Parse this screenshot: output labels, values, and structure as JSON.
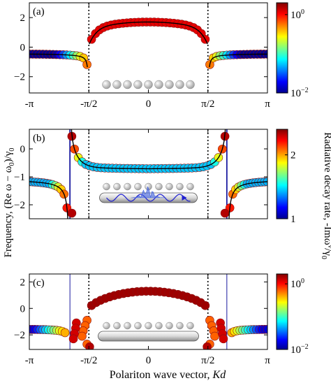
{
  "ylabel": "Frequency, (Re ω − ω",
  "ylabel_sub": "0",
  "ylabel_end": ")/γ",
  "ylabel_sub2": "0",
  "xlabel": "Polariton wave vector, ",
  "xlabel_var": "Kd",
  "colorbar_label_right": "Radiative decay rate, -Imω",
  "colorbar_label_sup": "ν",
  "colorbar_label_end": "/γ",
  "colorbar_label_sub": "0",
  "colors": {
    "marker_edge": "#8a1010",
    "curve": "#000000",
    "dotted": "#000000",
    "waveguide_line": "#1a1aa0"
  },
  "chart_data": [
    {
      "panel_label": "(a)",
      "type": "scatter",
      "ylim": [
        -3.1,
        3.0
      ],
      "yticks": [
        -2,
        0,
        2
      ],
      "xticks": [
        "-π",
        "-π/2",
        "0",
        "π/2",
        "π"
      ],
      "dotted_x": [
        -1.5708,
        1.5708
      ],
      "colorbar": {
        "scale": "log",
        "range": [
          0.01,
          2.0
        ],
        "ticks": [
          "10",
          "10"
        ],
        "tick_sups": [
          "0",
          "-2"
        ],
        "tick_values": [
          1,
          0.01
        ]
      },
      "inset": "chain",
      "bands": [
        {
          "branch": "outer",
          "x_range": [
            -3.1416,
            -1.5708
          ],
          "formula": "outerA"
        },
        {
          "branch": "inner",
          "x_range": [
            -1.5708,
            1.5708
          ],
          "formula": "innerA"
        }
      ]
    },
    {
      "panel_label": "(b)",
      "type": "scatter",
      "ylim": [
        -2.5,
        0.7
      ],
      "yticks": [
        -2,
        -1,
        0
      ],
      "xticks": [],
      "dotted_x": [
        -1.5708,
        1.5708
      ],
      "vlines_x": [
        -2.07,
        2.07
      ],
      "colorbar": {
        "scale": "linear",
        "range": [
          1,
          2.4
        ],
        "ticks": [
          "2",
          "1"
        ],
        "tick_values": [
          2,
          1
        ]
      },
      "inset": "waveguide-wave",
      "bands": [
        {
          "branch": "outer",
          "formula": "outerB"
        },
        {
          "branch": "inner",
          "formula": "innerB"
        }
      ]
    },
    {
      "panel_label": "(c)",
      "type": "scatter",
      "ylim": [
        -3.1,
        2.6
      ],
      "yticks": [
        -2,
        0,
        2
      ],
      "xticks": [
        "-π",
        "-π/2",
        "0",
        "π/2",
        "π"
      ],
      "dotted_x": [
        -1.5708,
        1.5708
      ],
      "vlines_x": [
        -2.07,
        2.07
      ],
      "colorbar": {
        "scale": "log",
        "range": [
          0.01,
          2.0
        ],
        "ticks": [
          "10",
          "10"
        ],
        "tick_sups": [
          "0",
          "-2"
        ],
        "tick_values": [
          1,
          0.01
        ]
      },
      "inset": "chain-waveguide",
      "bands": [
        {
          "branch": "outer",
          "formula": "outerC"
        },
        {
          "branch": "inner",
          "formula": "innerC"
        }
      ]
    }
  ]
}
